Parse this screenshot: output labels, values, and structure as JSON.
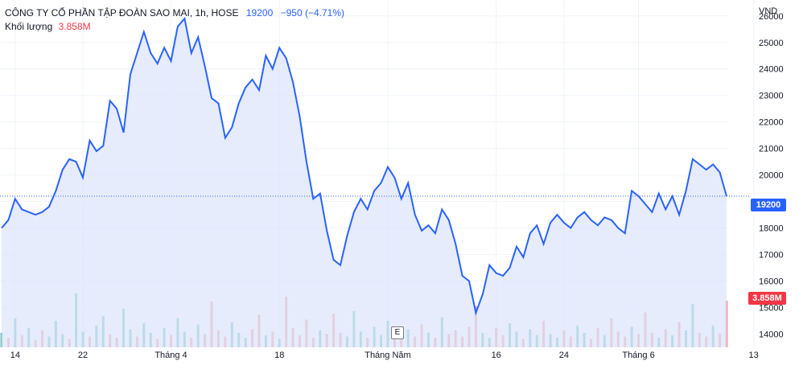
{
  "legend": {
    "symbol": "CÔNG TY CỔ PHẦN TẬP ĐOÀN SAO MAI, 1h, HOSE",
    "price": "19200",
    "change": "−950 (−4.71%)",
    "volume_label": "Khối lượng",
    "volume_value": "3.858M"
  },
  "earnings_marker": "E",
  "current_price_label": "19200",
  "current_volume_label": "3.858M",
  "colors": {
    "line": "#2962ff",
    "fill": "#dbe4fb",
    "up_volume": "#76c4bd",
    "down_volume": "#f0a2a2",
    "price_badge": "#2962ff",
    "volume_badge": "#f23645"
  },
  "chart_data": {
    "type": "area",
    "currency": "VND",
    "ylim": [
      13500,
      26600
    ],
    "yticks": [
      14000,
      15000,
      16000,
      17000,
      18000,
      19000,
      20000,
      21000,
      22000,
      23000,
      24000,
      25000,
      26000
    ],
    "xticks": [
      {
        "label": "14",
        "i": 2
      },
      {
        "label": "22",
        "i": 12
      },
      {
        "label": "Tháng 4",
        "i": 25
      },
      {
        "label": "18",
        "i": 41
      },
      {
        "label": "Tháng Năm",
        "i": 57
      },
      {
        "label": "16",
        "i": 73
      },
      {
        "label": "24",
        "i": 83
      },
      {
        "label": "Tháng 6",
        "i": 94
      },
      {
        "label": "13",
        "i": 111
      }
    ],
    "last_price": 19200,
    "values": [
      18000,
      18300,
      19100,
      18700,
      18600,
      18500,
      18600,
      18800,
      19400,
      20200,
      20600,
      20500,
      19900,
      21300,
      20900,
      21100,
      22800,
      22500,
      21600,
      23800,
      24600,
      25400,
      24600,
      24200,
      24800,
      24300,
      25600,
      25900,
      24600,
      25200,
      24100,
      22900,
      22700,
      21400,
      21800,
      22700,
      23300,
      23600,
      23200,
      24500,
      24000,
      24800,
      24400,
      23500,
      22200,
      20500,
      19100,
      19300,
      17900,
      16800,
      16600,
      17700,
      18600,
      19100,
      18700,
      19400,
      19700,
      20300,
      19900,
      19100,
      19700,
      18500,
      17900,
      18100,
      17800,
      18700,
      18300,
      17400,
      16200,
      16000,
      14800,
      15500,
      16600,
      16300,
      16200,
      16500,
      17300,
      16900,
      17800,
      18100,
      17400,
      18200,
      18500,
      18200,
      18000,
      18400,
      18600,
      18300,
      18100,
      18400,
      18300,
      18000,
      17800,
      19400,
      19200,
      18900,
      18600,
      19300,
      18700,
      19200,
      18500,
      19400,
      20600,
      20400,
      20200,
      20400,
      20100,
      19200
    ],
    "volume_ylim": [
      0,
      8
    ],
    "volume": [
      1.2,
      0.8,
      2.4,
      1.0,
      1.6,
      0.6,
      1.4,
      0.9,
      2.2,
      1.1,
      0.7,
      4.5,
      1.3,
      0.9,
      1.8,
      2.6,
      1.1,
      0.8,
      3.2,
      1.5,
      0.9,
      2.0,
      1.2,
      0.7,
      1.6,
      1.0,
      2.4,
      1.3,
      0.8,
      1.9,
      1.1,
      3.8,
      1.4,
      0.9,
      2.1,
      1.2,
      0.8,
      1.5,
      2.7,
      1.0,
      1.3,
      0.7,
      4.2,
      1.6,
      1.0,
      2.3,
      0.8,
      1.4,
      1.1,
      2.8,
      1.2,
      0.9,
      3.0,
      1.3,
      0.8,
      1.7,
      1.0,
      2.2,
      1.1,
      0.7,
      1.5,
      0.9,
      1.9,
      1.2,
      0.8,
      2.5,
      1.1,
      1.4,
      0.9,
      1.7,
      3.4,
      1.2,
      0.8,
      1.6,
      1.0,
      2.0,
      1.3,
      0.7,
      1.5,
      1.0,
      2.2,
      1.1,
      0.8,
      1.4,
      0.9,
      1.8,
      1.2,
      0.7,
      1.6,
      1.0,
      2.4,
      1.3,
      0.9,
      1.7,
      1.1,
      2.9,
      1.2,
      0.8,
      1.5,
      1.0,
      2.1,
      1.4,
      3.6,
      1.2,
      0.9,
      1.8,
      1.1,
      3.86
    ],
    "volume_up": [
      true,
      false,
      true,
      false,
      true,
      false,
      false,
      true,
      true,
      true,
      false,
      true,
      true,
      false,
      true,
      true,
      false,
      false,
      true,
      true,
      false,
      true,
      true,
      false,
      true,
      false,
      true,
      true,
      false,
      true,
      false,
      false,
      false,
      false,
      true,
      true,
      true,
      false,
      false,
      true,
      false,
      true,
      false,
      false,
      false,
      false,
      false,
      true,
      false,
      false,
      false,
      true,
      true,
      true,
      false,
      true,
      true,
      true,
      false,
      false,
      true,
      false,
      false,
      true,
      false,
      true,
      false,
      false,
      false,
      false,
      false,
      true,
      true,
      false,
      false,
      true,
      true,
      false,
      true,
      true,
      false,
      true,
      true,
      false,
      false,
      true,
      true,
      false,
      false,
      true,
      false,
      false,
      false,
      true,
      false,
      false,
      false,
      true,
      false,
      true,
      false,
      true,
      true,
      false,
      false,
      true,
      false,
      false
    ]
  }
}
